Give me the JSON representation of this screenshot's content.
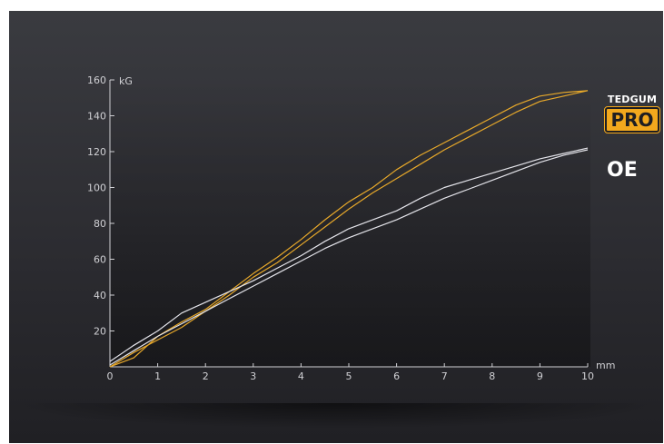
{
  "chart_data": {
    "type": "line",
    "title": "",
    "xlabel": "mm",
    "ylabel": "kG",
    "xlim": [
      0,
      10
    ],
    "ylim": [
      0,
      160
    ],
    "x_ticks": [
      "0",
      "1",
      "2",
      "3",
      "4",
      "5",
      "6",
      "7",
      "8",
      "9",
      "10"
    ],
    "y_ticks": [
      "20",
      "40",
      "60",
      "80",
      "100",
      "120",
      "140",
      "160"
    ],
    "grid": false,
    "series": [
      {
        "name": "PRO",
        "color": "#e8a92a",
        "lines": [
          [
            [
              0,
              0
            ],
            [
              0.5,
              5
            ],
            [
              1,
              17
            ],
            [
              1.5,
              25
            ],
            [
              2,
              32
            ],
            [
              2.5,
              42
            ],
            [
              3,
              52
            ],
            [
              3.5,
              61
            ],
            [
              4,
              71
            ],
            [
              4.5,
              82
            ],
            [
              5,
              92
            ],
            [
              5.5,
              100
            ],
            [
              6,
              110
            ],
            [
              6.5,
              118
            ],
            [
              7,
              125
            ],
            [
              7.5,
              132
            ],
            [
              8,
              139
            ],
            [
              8.5,
              146
            ],
            [
              9,
              151
            ],
            [
              9.5,
              153
            ],
            [
              10,
              154
            ]
          ],
          [
            [
              0,
              0
            ],
            [
              0.5,
              8
            ],
            [
              1,
              15
            ],
            [
              1.5,
              22
            ],
            [
              2,
              31
            ],
            [
              2.5,
              40
            ],
            [
              3,
              50
            ],
            [
              3.5,
              58
            ],
            [
              4,
              68
            ],
            [
              4.5,
              78
            ],
            [
              5,
              88
            ],
            [
              5.5,
              97
            ],
            [
              6,
              105
            ],
            [
              6.5,
              113
            ],
            [
              7,
              121
            ],
            [
              7.5,
              128
            ],
            [
              8,
              135
            ],
            [
              8.5,
              142
            ],
            [
              9,
              148
            ],
            [
              9.5,
              151
            ],
            [
              10,
              154
            ]
          ]
        ]
      },
      {
        "name": "OE",
        "color": "#e4e4ea",
        "lines": [
          [
            [
              0,
              3
            ],
            [
              0.5,
              12
            ],
            [
              1,
              20
            ],
            [
              1.5,
              30
            ],
            [
              2,
              36
            ],
            [
              2.5,
              42
            ],
            [
              3,
              48
            ],
            [
              3.5,
              55
            ],
            [
              4,
              62
            ],
            [
              4.5,
              70
            ],
            [
              5,
              77
            ],
            [
              5.5,
              82
            ],
            [
              6,
              87
            ],
            [
              6.5,
              94
            ],
            [
              7,
              100
            ],
            [
              7.5,
              104
            ],
            [
              8,
              108
            ],
            [
              8.5,
              112
            ],
            [
              9,
              116
            ],
            [
              9.5,
              119
            ],
            [
              10,
              122
            ]
          ],
          [
            [
              0,
              1
            ],
            [
              0.5,
              9
            ],
            [
              1,
              17
            ],
            [
              1.5,
              24
            ],
            [
              2,
              31
            ],
            [
              2.5,
              38
            ],
            [
              3,
              45
            ],
            [
              3.5,
              52
            ],
            [
              4,
              59
            ],
            [
              4.5,
              66
            ],
            [
              5,
              72
            ],
            [
              5.5,
              77
            ],
            [
              6,
              82
            ],
            [
              6.5,
              88
            ],
            [
              7,
              94
            ],
            [
              7.5,
              99
            ],
            [
              8,
              104
            ],
            [
              8.5,
              109
            ],
            [
              9,
              114
            ],
            [
              9.5,
              118
            ],
            [
              10,
              121
            ]
          ]
        ]
      }
    ]
  },
  "brand": {
    "name": "TEDGUM",
    "badge": "PRO",
    "oe_label": "OE"
  }
}
